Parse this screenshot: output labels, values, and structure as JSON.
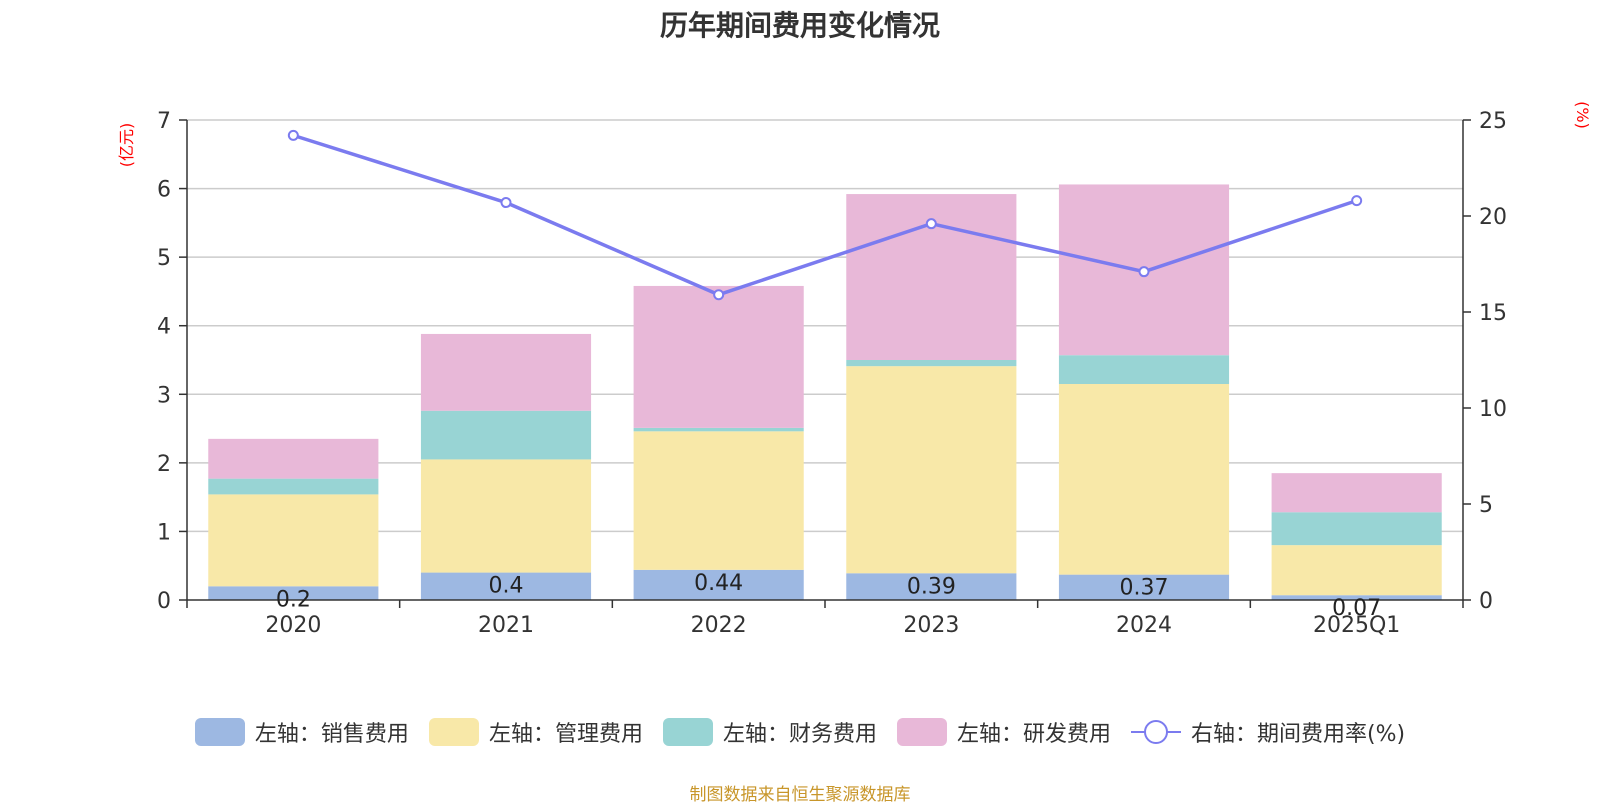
{
  "title": "历年期间费用变化情况",
  "source_note": "制图数据来自恒生聚源数据库",
  "chart_data": {
    "type": "bar",
    "stacked": true,
    "title": "历年期间费用变化情况",
    "categories": [
      "2020",
      "2021",
      "2022",
      "2023",
      "2024",
      "2025Q1"
    ],
    "left_axis": {
      "unit": "(亿元)",
      "ylim": [
        0,
        7
      ],
      "ticks": [
        "0",
        "1",
        "2",
        "3",
        "4",
        "5",
        "6",
        "7"
      ]
    },
    "right_axis": {
      "unit": "(%)",
      "ylim": [
        0,
        25
      ],
      "ticks": [
        "0",
        "5",
        "10",
        "15",
        "20",
        "25"
      ]
    },
    "series": [
      {
        "name": "左轴：销售费用",
        "axis": "left",
        "color": "#9db8e2",
        "values": [
          0.2,
          0.4,
          0.44,
          0.39,
          0.37,
          0.07
        ],
        "labels": [
          "0.2",
          "0.4",
          "0.44",
          "0.39",
          "0.37",
          "0.07"
        ]
      },
      {
        "name": "左轴：管理费用",
        "axis": "left",
        "color": "#f8e8a8",
        "values": [
          1.34,
          1.65,
          2.02,
          3.02,
          2.78,
          0.73
        ]
      },
      {
        "name": "左轴：财务费用",
        "axis": "left",
        "color": "#98d4d4",
        "values": [
          0.23,
          0.71,
          0.05,
          0.09,
          0.42,
          0.48
        ]
      },
      {
        "name": "左轴：研发费用",
        "axis": "left",
        "color": "#e8b8d8",
        "values": [
          0.58,
          1.12,
          2.07,
          2.42,
          2.49,
          0.57
        ]
      },
      {
        "name": "右轴：期间费用率(%)",
        "axis": "right",
        "type": "line",
        "color": "#7b7bef",
        "values": [
          24.2,
          20.7,
          15.9,
          19.6,
          17.1,
          20.8
        ]
      }
    ],
    "grid": true,
    "legend_position": "bottom"
  }
}
